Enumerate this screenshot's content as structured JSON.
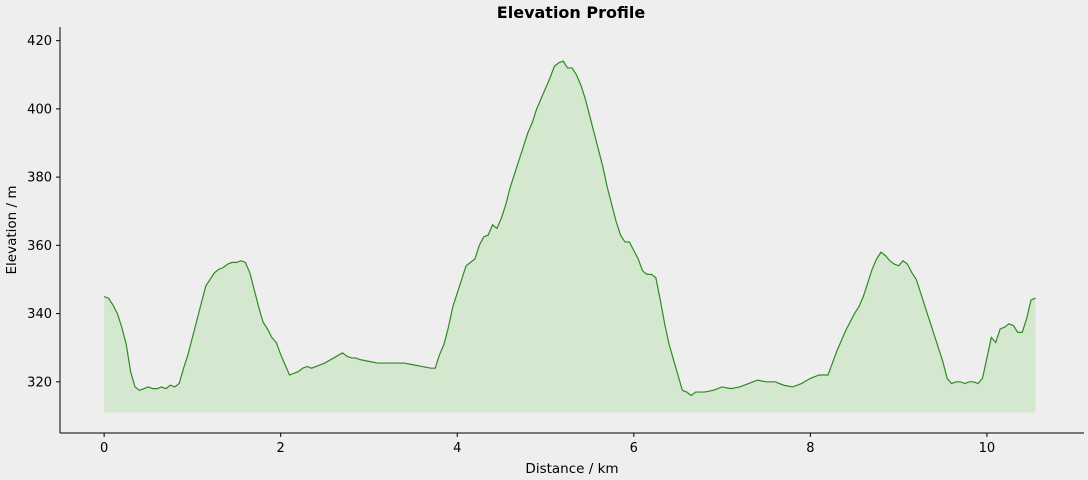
{
  "chart_data": {
    "type": "area",
    "title": "Elevation Profile",
    "xlabel": "Distance / km",
    "ylabel": "Elevation / m",
    "xlim": [
      -0.5,
      11.1
    ],
    "ylim": [
      305,
      424
    ],
    "fill_base": 311,
    "xticks": [
      0,
      2,
      4,
      6,
      8,
      10
    ],
    "yticks": [
      320,
      340,
      360,
      380,
      400,
      420
    ],
    "grid": false,
    "legend": "none",
    "line_color": "#2e8b22",
    "fill_color": "#d4e7cf",
    "x": [
      0.0,
      0.05,
      0.1,
      0.15,
      0.2,
      0.25,
      0.3,
      0.35,
      0.4,
      0.45,
      0.5,
      0.55,
      0.6,
      0.65,
      0.7,
      0.75,
      0.8,
      0.85,
      0.9,
      0.95,
      1.0,
      1.05,
      1.1,
      1.15,
      1.2,
      1.25,
      1.3,
      1.35,
      1.4,
      1.45,
      1.5,
      1.55,
      1.6,
      1.65,
      1.7,
      1.75,
      1.8,
      1.85,
      1.9,
      1.95,
      2.0,
      2.05,
      2.1,
      2.15,
      2.2,
      2.25,
      2.3,
      2.35,
      2.4,
      2.5,
      2.6,
      2.7,
      2.75,
      2.8,
      2.85,
      2.9,
      3.0,
      3.1,
      3.2,
      3.3,
      3.4,
      3.5,
      3.6,
      3.7,
      3.75,
      3.8,
      3.85,
      3.9,
      3.95,
      4.0,
      4.05,
      4.1,
      4.15,
      4.2,
      4.25,
      4.3,
      4.35,
      4.4,
      4.45,
      4.5,
      4.55,
      4.6,
      4.65,
      4.7,
      4.75,
      4.8,
      4.85,
      4.9,
      4.95,
      5.0,
      5.05,
      5.1,
      5.15,
      5.2,
      5.25,
      5.3,
      5.35,
      5.4,
      5.45,
      5.5,
      5.55,
      5.6,
      5.65,
      5.7,
      5.75,
      5.8,
      5.85,
      5.9,
      5.95,
      6.0,
      6.05,
      6.1,
      6.15,
      6.2,
      6.25,
      6.3,
      6.35,
      6.4,
      6.45,
      6.5,
      6.55,
      6.6,
      6.65,
      6.7,
      6.8,
      6.9,
      7.0,
      7.1,
      7.2,
      7.3,
      7.4,
      7.5,
      7.6,
      7.7,
      7.8,
      7.9,
      8.0,
      8.1,
      8.2,
      8.25,
      8.3,
      8.35,
      8.4,
      8.45,
      8.5,
      8.55,
      8.6,
      8.65,
      8.7,
      8.75,
      8.8,
      8.85,
      8.9,
      8.95,
      9.0,
      9.05,
      9.1,
      9.15,
      9.2,
      9.25,
      9.3,
      9.35,
      9.4,
      9.45,
      9.5,
      9.55,
      9.6,
      9.65,
      9.7,
      9.75,
      9.8,
      9.85,
      9.9,
      9.95,
      10.0,
      10.05,
      10.1,
      10.15,
      10.2,
      10.25,
      10.3,
      10.35,
      10.4,
      10.45,
      10.5,
      10.55
    ],
    "y": [
      345,
      344.5,
      342.5,
      340,
      336,
      331,
      323,
      318.5,
      317.5,
      318,
      318.5,
      318,
      318,
      318.5,
      318,
      319,
      318.5,
      319.5,
      324,
      328,
      333,
      338,
      343,
      348,
      350,
      352,
      353,
      353.5,
      354.5,
      355,
      355,
      355.5,
      355,
      352,
      347,
      342,
      337.5,
      335.5,
      333,
      331.5,
      328,
      325,
      322,
      322.5,
      323,
      324,
      324.5,
      324,
      324.5,
      325.5,
      327,
      328.5,
      327.5,
      327,
      327,
      326.5,
      326,
      325.5,
      325.5,
      325.5,
      325.5,
      325,
      324.5,
      324,
      324,
      328,
      331,
      336,
      342,
      346,
      350,
      354,
      355,
      356,
      360,
      362.5,
      363,
      366,
      365,
      368,
      372,
      377,
      381,
      385,
      389,
      393,
      396,
      400,
      403,
      406,
      409,
      412.5,
      413.5,
      414,
      412,
      412,
      410,
      407,
      403,
      398,
      393,
      388,
      383,
      377,
      372,
      367,
      363,
      361,
      361,
      358.5,
      356,
      352.5,
      351.5,
      351.5,
      350.5,
      344,
      337,
      331,
      326.5,
      322,
      317.5,
      317,
      316,
      317,
      317,
      317.5,
      318.5,
      318,
      318.5,
      319.5,
      320.5,
      320,
      320,
      319,
      318.5,
      319.5,
      321,
      322,
      322,
      325.5,
      329,
      332,
      335,
      337.5,
      340,
      342,
      345,
      349,
      353,
      356,
      358,
      357,
      355.5,
      354.5,
      354,
      355.5,
      354.5,
      352,
      350,
      346,
      342,
      338,
      334,
      330,
      326,
      321,
      319.5,
      320,
      320,
      319.5,
      320,
      320,
      319.5,
      321,
      327,
      333,
      331.5,
      335.5,
      336,
      337,
      336.5,
      334.5,
      334.5,
      338.5,
      344,
      344.5
    ]
  }
}
